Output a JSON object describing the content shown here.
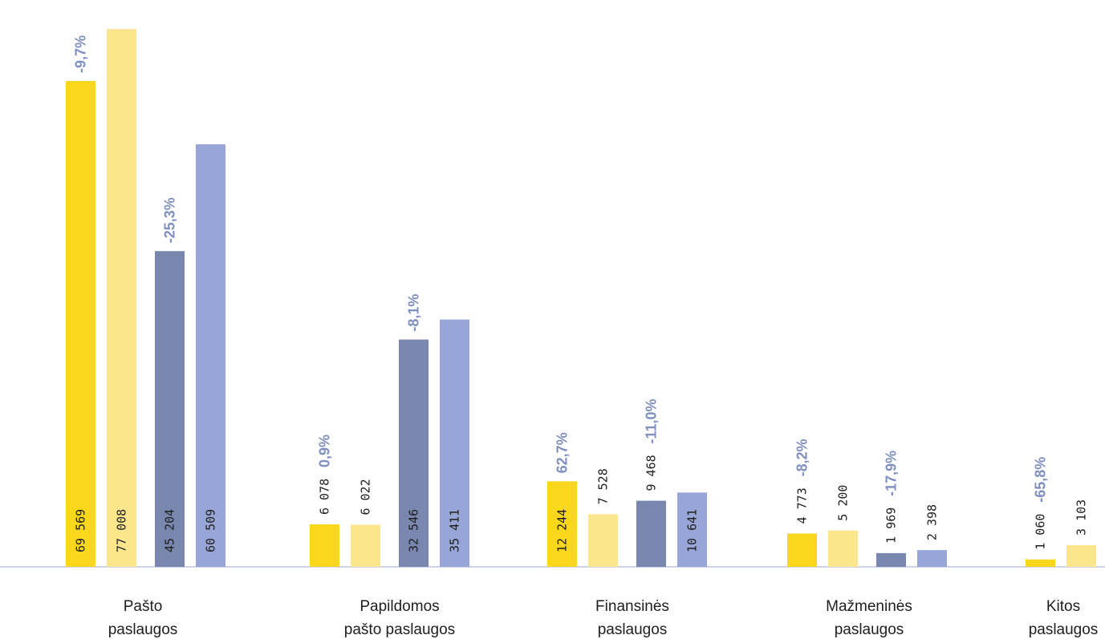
{
  "chart_data": {
    "type": "bar",
    "title": "",
    "xlabel": "",
    "ylabel": "",
    "legend": "none",
    "grid": false,
    "categories": [
      [
        "Pašto",
        "paslaugos"
      ],
      [
        "Papildomos",
        "pašto paslaugos"
      ],
      [
        "Finansinės",
        "paslaugos"
      ],
      [
        "Mažmeninės",
        "paslaugos"
      ],
      [
        "Kitos",
        "paslaugos"
      ]
    ],
    "series_colors": [
      "#f9d71c",
      "#fbe68d",
      "#7986ad",
      "#97a6d7"
    ],
    "pct_color": "#7f8fbe",
    "axis_color": "#cfd3e6",
    "groups": [
      {
        "values": [
          69569,
          77008,
          45204,
          60509
        ],
        "labels": [
          "69 569",
          "77 008",
          "45 204",
          "60 509"
        ],
        "changes": [
          "-9,7%",
          "",
          "-25,3%",
          ""
        ]
      },
      {
        "values": [
          6078,
          6022,
          32546,
          35411
        ],
        "labels": [
          "6 078",
          "6 022",
          "32 546",
          "35 411"
        ],
        "changes": [
          "0,9%",
          "",
          "-8,1%",
          ""
        ]
      },
      {
        "values": [
          12244,
          7528,
          9468,
          10641
        ],
        "labels": [
          "12 244",
          "7 528",
          "9 468",
          "10 641"
        ],
        "changes": [
          "62,7%",
          "",
          "-11,0%",
          ""
        ]
      },
      {
        "values": [
          4773,
          5200,
          1969,
          2398
        ],
        "labels": [
          "4 773",
          "5 200",
          "1 969",
          "2 398"
        ],
        "changes": [
          "-8,2%",
          "",
          "-17,9%",
          ""
        ]
      },
      {
        "values": [
          1060,
          3103
        ],
        "labels": [
          "1 060",
          "3 103"
        ],
        "changes": [
          "-65,8%",
          ""
        ]
      }
    ]
  }
}
